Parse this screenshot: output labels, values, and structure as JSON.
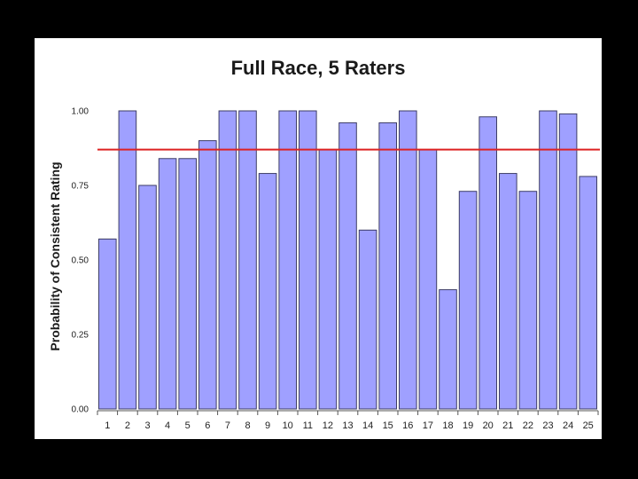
{
  "chart_data": {
    "type": "bar",
    "title": "Full Race, 5 Raters",
    "xlabel": "",
    "ylabel": "Probability of Consistent Rating",
    "ylim": [
      0,
      1
    ],
    "yticks": [
      "0.00",
      "0.25",
      "0.50",
      "0.75",
      "1.00"
    ],
    "categories": [
      "1",
      "2",
      "3",
      "4",
      "5",
      "6",
      "7",
      "8",
      "9",
      "10",
      "11",
      "12",
      "13",
      "14",
      "15",
      "16",
      "17",
      "18",
      "19",
      "20",
      "21",
      "22",
      "23",
      "24",
      "25"
    ],
    "values": [
      0.57,
      1.0,
      0.75,
      0.84,
      0.84,
      0.9,
      1.0,
      1.0,
      0.79,
      1.0,
      1.0,
      0.87,
      0.96,
      0.6,
      0.96,
      1.0,
      0.87,
      0.4,
      0.73,
      0.98,
      0.79,
      0.73,
      1.0,
      0.99,
      0.78
    ],
    "reference_line": 0.87,
    "grid": false,
    "colors": {
      "bar_fill": "#9fa0ff",
      "bar_stroke": "#3d3d66",
      "reference_line": "#dd2222",
      "axis": "#555555",
      "background": "#ffffff",
      "frame": "#000000"
    }
  }
}
